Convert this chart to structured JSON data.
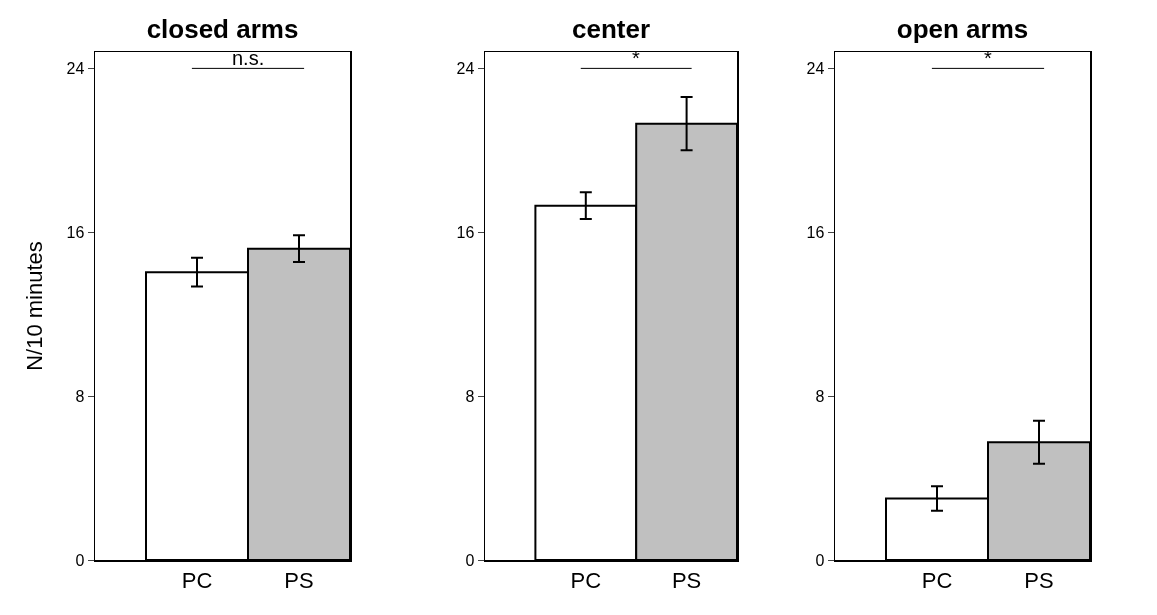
{
  "chart_data": [
    {
      "type": "bar",
      "title": "closed arms",
      "ylabel": "N/10 minutes",
      "categories": [
        "PC",
        "PS"
      ],
      "values": [
        14.05,
        15.2
      ],
      "errors": [
        0.7,
        0.65
      ],
      "colors": [
        "#ffffff",
        "#c0c0c0"
      ],
      "ylim": [
        0,
        24.8
      ],
      "yticks": [
        0,
        8,
        16,
        24
      ],
      "grid": false,
      "legend": false,
      "annotations": [
        "n.s."
      ]
    },
    {
      "type": "bar",
      "title": "center",
      "categories": [
        "PC",
        "PS"
      ],
      "values": [
        17.3,
        21.3
      ],
      "errors": [
        0.65,
        1.3
      ],
      "colors": [
        "#ffffff",
        "#c0c0c0"
      ],
      "ylim": [
        0,
        24.8
      ],
      "yticks": [
        0,
        8,
        16,
        24
      ],
      "grid": false,
      "legend": false,
      "annotations": [
        "*"
      ]
    },
    {
      "type": "bar",
      "title": "open arms",
      "categories": [
        "PC",
        "PS"
      ],
      "values": [
        3.0,
        5.75
      ],
      "errors": [
        0.6,
        1.05
      ],
      "colors": [
        "#ffffff",
        "#c0c0c0"
      ],
      "ylim": [
        0,
        24.8
      ],
      "yticks": [
        0,
        8,
        16,
        24
      ],
      "grid": false,
      "legend": false,
      "annotations": [
        "*"
      ]
    }
  ]
}
